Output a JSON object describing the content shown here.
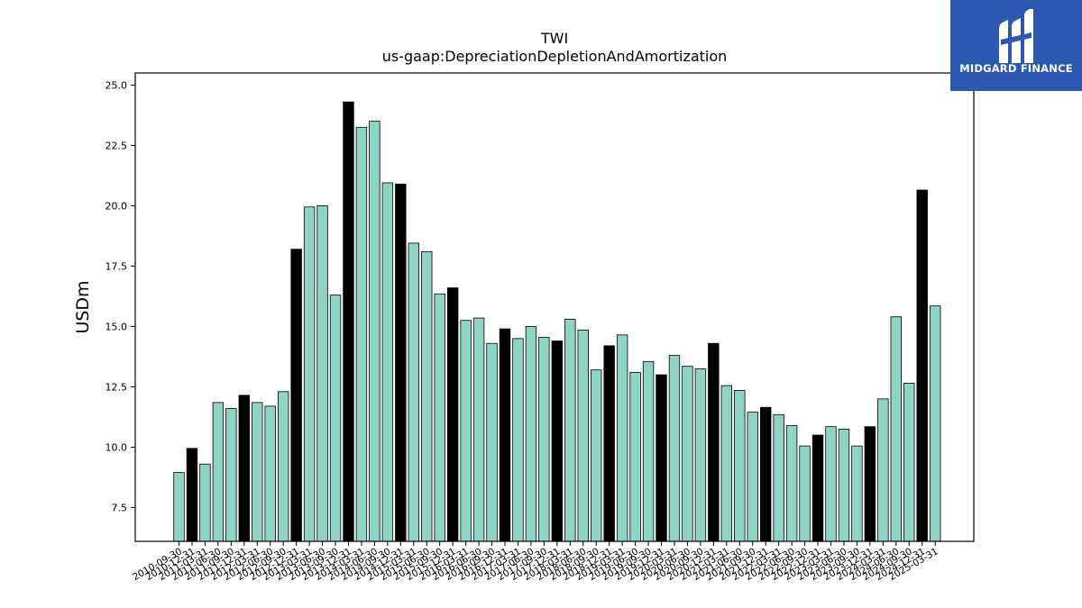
{
  "logo": {
    "text": "MIDGARD FINANCE",
    "icon": "midgard-logo-icon",
    "background": "#2c58b0"
  },
  "colors": {
    "normal": "#8fd3c5",
    "quarter_end": "#000000",
    "edge": "#000000"
  },
  "chart_data": {
    "type": "bar",
    "title": "TWI",
    "subtitle": "us-gaap:DepreciationDepletionAndAmortization",
    "ylabel": "USDm",
    "xlabel": "",
    "ylim": [
      6.1,
      25.5
    ],
    "yticks": [
      "7.5",
      "10.0",
      "12.5",
      "15.0",
      "17.5",
      "20.0",
      "22.5",
      "25.0"
    ],
    "grid": false,
    "categories": [
      "2010-09-30",
      "2010-12-31",
      "2011-03-31",
      "2011-06-30",
      "2011-09-30",
      "2011-12-31",
      "2012-03-31",
      "2012-06-30",
      "2012-09-30",
      "2012-12-31",
      "2013-03-31",
      "2013-06-30",
      "2013-09-30",
      "2013-12-31",
      "2014-03-31",
      "2014-06-30",
      "2014-09-30",
      "2014-12-31",
      "2015-03-31",
      "2015-06-30",
      "2015-09-30",
      "2015-12-31",
      "2016-03-31",
      "2016-06-30",
      "2016-09-30",
      "2016-12-31",
      "2017-03-31",
      "2017-06-30",
      "2017-09-30",
      "2017-12-31",
      "2018-03-31",
      "2018-06-30",
      "2018-09-30",
      "2018-12-31",
      "2019-03-31",
      "2019-06-30",
      "2019-09-30",
      "2019-12-31",
      "2020-03-31",
      "2020-06-30",
      "2020-09-30",
      "2020-12-31",
      "2021-03-31",
      "2021-06-30",
      "2021-09-30",
      "2021-12-31",
      "2022-03-31",
      "2022-06-30",
      "2022-09-30",
      "2022-12-31",
      "2023-03-31",
      "2023-06-30",
      "2023-09-30",
      "2023-12-31",
      "2024-03-31",
      "2024-06-30",
      "2024-09-30",
      "2024-12-31",
      "2025-03-31"
    ],
    "values": [
      8.95,
      9.95,
      9.3,
      11.85,
      11.6,
      12.15,
      11.85,
      11.7,
      12.3,
      18.2,
      19.95,
      20.0,
      16.3,
      24.3,
      23.25,
      23.5,
      20.95,
      20.9,
      18.45,
      18.1,
      16.35,
      16.6,
      15.25,
      15.35,
      14.3,
      14.9,
      14.5,
      15.0,
      14.55,
      14.4,
      15.3,
      14.85,
      13.2,
      14.2,
      14.65,
      13.1,
      13.55,
      13.0,
      13.8,
      13.35,
      13.25,
      14.3,
      12.55,
      12.35,
      11.45,
      11.65,
      11.35,
      10.9,
      10.05,
      10.5,
      10.85,
      10.75,
      10.05,
      10.85,
      12.0,
      15.4,
      12.65,
      20.65,
      15.85
    ],
    "year_end_highlight": [
      false,
      true,
      false,
      false,
      false,
      true,
      false,
      false,
      false,
      true,
      false,
      false,
      false,
      true,
      false,
      false,
      false,
      true,
      false,
      false,
      false,
      true,
      false,
      false,
      false,
      true,
      false,
      false,
      false,
      true,
      false,
      false,
      false,
      true,
      false,
      false,
      false,
      true,
      false,
      false,
      false,
      true,
      false,
      false,
      false,
      true,
      false,
      false,
      false,
      true,
      false,
      false,
      false,
      true,
      false,
      false,
      false,
      true,
      false
    ]
  }
}
